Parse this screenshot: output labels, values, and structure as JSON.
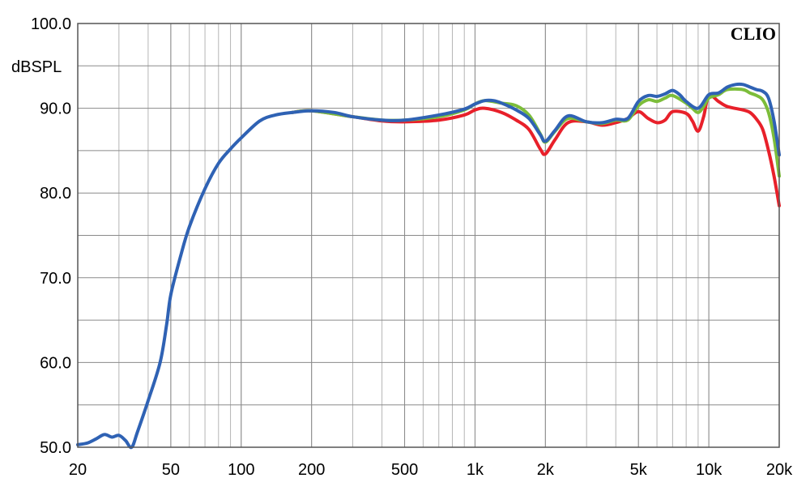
{
  "chart_data": {
    "type": "line",
    "brand": "CLIO",
    "ylabel": "dBSPL",
    "x_scale": "log",
    "xlim": [
      20,
      20000
    ],
    "ylim": [
      50,
      100
    ],
    "grid": true,
    "x_tick_values": [
      20,
      50,
      100,
      200,
      500,
      1000,
      2000,
      5000,
      10000,
      20000
    ],
    "x_tick_labels": [
      "20",
      "50",
      "100",
      "200",
      "500",
      "1k",
      "2k",
      "5k",
      "10k",
      "20k"
    ],
    "y_tick_values": [
      50,
      60,
      70,
      80,
      90,
      100
    ],
    "y_tick_labels": [
      "50.0",
      "60.0",
      "70.0",
      "80.0",
      "90.0",
      "100.0"
    ],
    "series": [
      {
        "color": "#e8202a",
        "x": [
          165,
          200,
          300,
          400,
          500,
          700,
          900,
          1000,
          1100,
          1300,
          1500,
          1700,
          1900,
          2000,
          2200,
          2500,
          3000,
          3500,
          4000,
          4500,
          5000,
          5500,
          6000,
          6500,
          7000,
          8000,
          8500,
          9000,
          9500,
          10000,
          11000,
          12000,
          14000,
          15000,
          16000,
          17000,
          18000,
          19000,
          20000
        ],
        "y": [
          89.5,
          89.7,
          89.0,
          88.5,
          88.4,
          88.6,
          89.2,
          89.8,
          90.0,
          89.5,
          88.6,
          87.5,
          85.2,
          84.6,
          86.3,
          88.3,
          88.4,
          88.0,
          88.3,
          88.8,
          89.6,
          88.8,
          88.3,
          88.6,
          89.6,
          89.4,
          88.5,
          87.3,
          89.0,
          91.5,
          90.8,
          90.2,
          89.8,
          89.5,
          88.7,
          87.5,
          85.0,
          82.0,
          78.5
        ]
      },
      {
        "color": "#7cbd3a",
        "x": [
          165,
          200,
          300,
          400,
          500,
          700,
          900,
          1000,
          1100,
          1300,
          1500,
          1700,
          1900,
          2000,
          2200,
          2500,
          3000,
          3500,
          4000,
          4500,
          5000,
          5500,
          6000,
          6500,
          7000,
          8000,
          8500,
          9000,
          9500,
          10000,
          11000,
          12000,
          14000,
          15000,
          16000,
          17000,
          18000,
          19000,
          20000
        ],
        "y": [
          89.5,
          89.7,
          89.0,
          88.6,
          88.6,
          89.0,
          89.8,
          90.5,
          90.9,
          90.6,
          90.3,
          89.2,
          87.0,
          86.0,
          87.3,
          88.8,
          88.4,
          88.2,
          88.6,
          88.6,
          90.3,
          91.0,
          90.8,
          91.2,
          91.5,
          90.6,
          90.0,
          89.5,
          90.2,
          91.2,
          91.6,
          92.2,
          92.2,
          91.8,
          91.5,
          91.0,
          89.5,
          86.5,
          82.0
        ]
      },
      {
        "color": "#2f62b4",
        "x": [
          20,
          22,
          24,
          26,
          28,
          30,
          32,
          34,
          36,
          40,
          45,
          48,
          50,
          55,
          60,
          70,
          80,
          90,
          100,
          120,
          140,
          165,
          200,
          250,
          300,
          400,
          500,
          700,
          900,
          1000,
          1100,
          1200,
          1300,
          1500,
          1700,
          1900,
          2000,
          2200,
          2500,
          3000,
          3500,
          4000,
          4500,
          5000,
          5500,
          6000,
          6500,
          7000,
          7500,
          8000,
          9000,
          10000,
          11000,
          12000,
          13000,
          14000,
          15000,
          16000,
          17000,
          18000,
          19000,
          20000
        ],
        "y": [
          50.3,
          50.5,
          51.0,
          51.5,
          51.2,
          51.4,
          50.8,
          50.0,
          51.8,
          55.5,
          60.0,
          64.5,
          68.0,
          72.5,
          76.0,
          80.5,
          83.5,
          85.2,
          86.5,
          88.5,
          89.2,
          89.5,
          89.7,
          89.5,
          89.0,
          88.6,
          88.6,
          89.2,
          89.9,
          90.5,
          90.9,
          90.9,
          90.6,
          89.8,
          88.8,
          86.9,
          86.1,
          87.4,
          89.1,
          88.4,
          88.3,
          88.7,
          88.8,
          90.8,
          91.5,
          91.4,
          91.7,
          92.1,
          91.6,
          90.8,
          90.0,
          91.6,
          91.8,
          92.5,
          92.8,
          92.8,
          92.5,
          92.2,
          92.0,
          91.2,
          88.5,
          84.5
        ]
      }
    ]
  }
}
